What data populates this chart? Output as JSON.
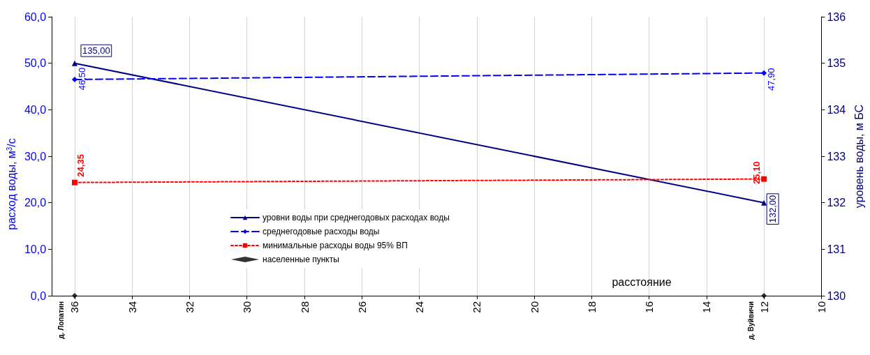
{
  "chart_data": {
    "type": "line",
    "xlabel": "расстояние",
    "ylabel": "расход воды, м$^{3}$/с",
    "y2label": "уровень воды, м БС",
    "xlim": [
      36.8,
      10
    ],
    "xticks": [
      36,
      34,
      32,
      30,
      28,
      26,
      24,
      22,
      20,
      18,
      16,
      14,
      12,
      10
    ],
    "ylim": [
      0,
      60
    ],
    "yticks": [
      {
        "value": 0,
        "label": "0,0"
      },
      {
        "value": 10,
        "label": "10,0"
      },
      {
        "value": 20,
        "label": "20,0"
      },
      {
        "value": 30,
        "label": "30,0"
      },
      {
        "value": 40,
        "label": "40,0"
      },
      {
        "value": 50,
        "label": "50,0"
      },
      {
        "value": 60,
        "label": "60,0"
      }
    ],
    "y2lim": [
      130,
      136
    ],
    "y2ticks": [
      130,
      131,
      132,
      133,
      134,
      135,
      136
    ],
    "grid": "x",
    "legend": "bottom",
    "x": [
      36,
      12
    ],
    "series": [
      {
        "name": "уровни воды при среднегодовых расходах воды",
        "color": "#000080",
        "axis": "y2",
        "values": [
          135,
          132
        ],
        "value_labels": [
          "135,00",
          "132,00"
        ],
        "marker": "triangle",
        "line_style": "solid"
      },
      {
        "name": "среднегодовые расходы воды",
        "color": "#0000ff",
        "values": [
          46.5,
          47.9
        ],
        "value_labels": [
          "46,50",
          "47,90"
        ],
        "marker": "diamond",
        "line_style": "dashed"
      },
      {
        "name": "минимальные расходы воды 95% ВП",
        "color": "#ff0000",
        "values": [
          24.35,
          25.1
        ],
        "value_labels": [
          "24,35",
          "25,10"
        ],
        "marker": "square",
        "line_style": "dotted"
      },
      {
        "name": "населенные пункты",
        "type": "scatter",
        "color": "#000000",
        "values": [
          0,
          0
        ],
        "marker": "diamond"
      }
    ],
    "annotations": [
      {
        "text": "д. Лопатин",
        "x": 36,
        "y": 0
      },
      {
        "text": "д. Вуйвичи",
        "x": 12,
        "y": 0
      }
    ]
  }
}
